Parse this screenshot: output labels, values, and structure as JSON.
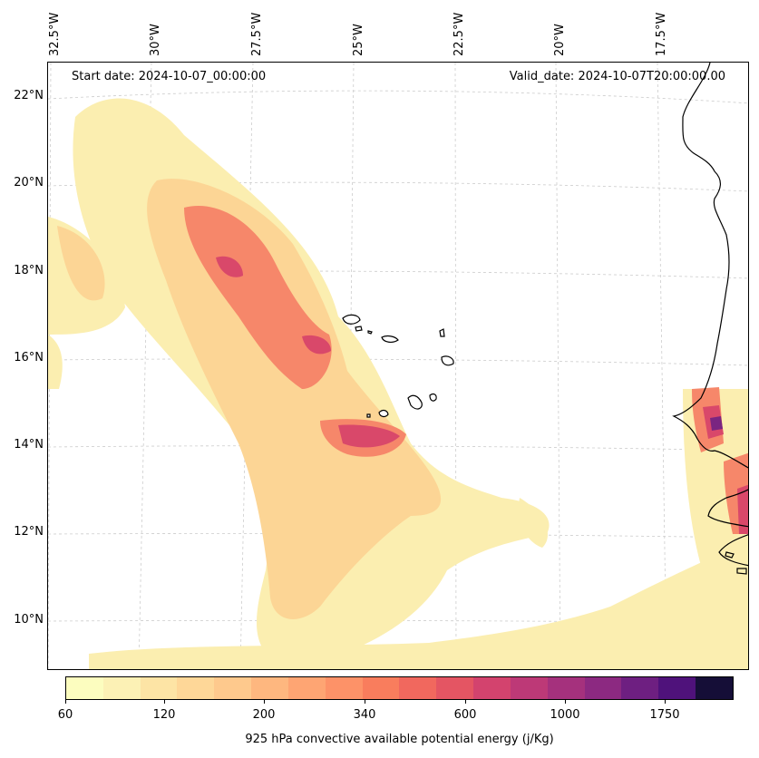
{
  "annotations": {
    "start_date": "Start date: 2024-10-07_00:00:00",
    "valid_date": "Valid_date: 2024-10-07T20:00:00.00"
  },
  "longitude_labels": [
    "32.5°W",
    "30°W",
    "27.5°W",
    "25°W",
    "22.5°W",
    "20°W",
    "17.5°W"
  ],
  "latitude_labels": [
    "22°N",
    "20°N",
    "18°N",
    "16°N",
    "14°N",
    "12°N",
    "10°N"
  ],
  "colorbar": {
    "tick_labels": [
      "60",
      "120",
      "200",
      "340",
      "600",
      "1000",
      "1750"
    ],
    "label": "925 hPa convective available potential energy (j/Kg)",
    "colors": [
      "#fcfdbf",
      "#fcf1b5",
      "#fde4a5",
      "#fed798",
      "#fec98d",
      "#feb77f",
      "#fea573",
      "#fd9268",
      "#f97d5d",
      "#f1685e",
      "#e45563",
      "#d3436e",
      "#bd3977",
      "#a5317d",
      "#8c2981",
      "#6e1f81",
      "#4f127b",
      "#150e37"
    ]
  },
  "colors": {
    "cape_low": "#fbeeb0",
    "cape_mid": "#fcd595",
    "cape_high": "#f6876a",
    "cape_peak": "#d9486a",
    "cape_extreme": "#7a2581",
    "coastline": "#000000",
    "gridline": "#cccccc"
  }
}
